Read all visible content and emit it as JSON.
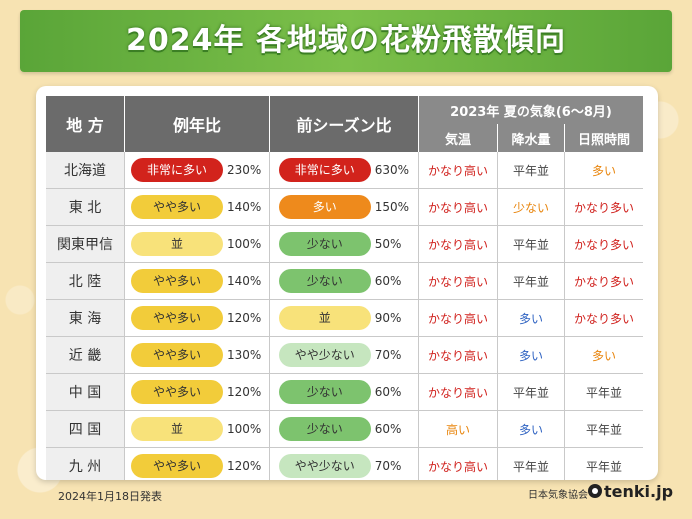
{
  "title": "2024年 各地域の花粉飛散傾向",
  "header": {
    "region": "地 方",
    "yearly": "例年比",
    "previous": "前シーズン比",
    "summer_title": "2023年 夏の気象(6～8月)",
    "temp": "気温",
    "rain": "降水量",
    "sun": "日照時間"
  },
  "rows": [
    {
      "region": "北海道",
      "yearly": "非常に多い",
      "yearly_pct": "230%",
      "prev": "非常に多い",
      "prev_pct": "630%",
      "temp": "かなり高い",
      "rain": "平年並",
      "sun": "多い"
    },
    {
      "region": "東 北",
      "yearly": "やや多い",
      "yearly_pct": "140%",
      "prev": "多い",
      "prev_pct": "150%",
      "temp": "かなり高い",
      "rain": "少ない",
      "sun": "かなり多い"
    },
    {
      "region": "関東甲信",
      "yearly": "並",
      "yearly_pct": "100%",
      "prev": "少ない",
      "prev_pct": "50%",
      "temp": "かなり高い",
      "rain": "平年並",
      "sun": "かなり多い"
    },
    {
      "region": "北 陸",
      "yearly": "やや多い",
      "yearly_pct": "140%",
      "prev": "少ない",
      "prev_pct": "60%",
      "temp": "かなり高い",
      "rain": "平年並",
      "sun": "かなり多い"
    },
    {
      "region": "東 海",
      "yearly": "やや多い",
      "yearly_pct": "120%",
      "prev": "並",
      "prev_pct": "90%",
      "temp": "かなり高い",
      "rain": "多い",
      "sun": "かなり多い"
    },
    {
      "region": "近 畿",
      "yearly": "やや多い",
      "yearly_pct": "130%",
      "prev": "やや少ない",
      "prev_pct": "70%",
      "temp": "かなり高い",
      "rain": "多い",
      "sun": "多い"
    },
    {
      "region": "中 国",
      "yearly": "やや多い",
      "yearly_pct": "120%",
      "prev": "少ない",
      "prev_pct": "60%",
      "temp": "かなり高い",
      "rain": "平年並",
      "sun": "平年並"
    },
    {
      "region": "四 国",
      "yearly": "並",
      "yearly_pct": "100%",
      "prev": "少ない",
      "prev_pct": "60%",
      "temp": "高い",
      "rain": "多い",
      "sun": "平年並"
    },
    {
      "region": "九 州",
      "yearly": "やや多い",
      "yearly_pct": "120%",
      "prev": "やや少ない",
      "prev_pct": "70%",
      "temp": "かなり高い",
      "rain": "平年並",
      "sun": "平年並"
    }
  ],
  "colors": {
    "非常に多い": "#d2231c",
    "多い": "#ee8a1c",
    "やや多い": "#f2cc3a",
    "並": "#f8e27a",
    "やや少ない": "#c6e6bf",
    "少ない": "#7dc36e"
  },
  "footer": {
    "date": "2024年1月18日発表",
    "org": "日本気象協会",
    "brand": "tenki.jp"
  }
}
